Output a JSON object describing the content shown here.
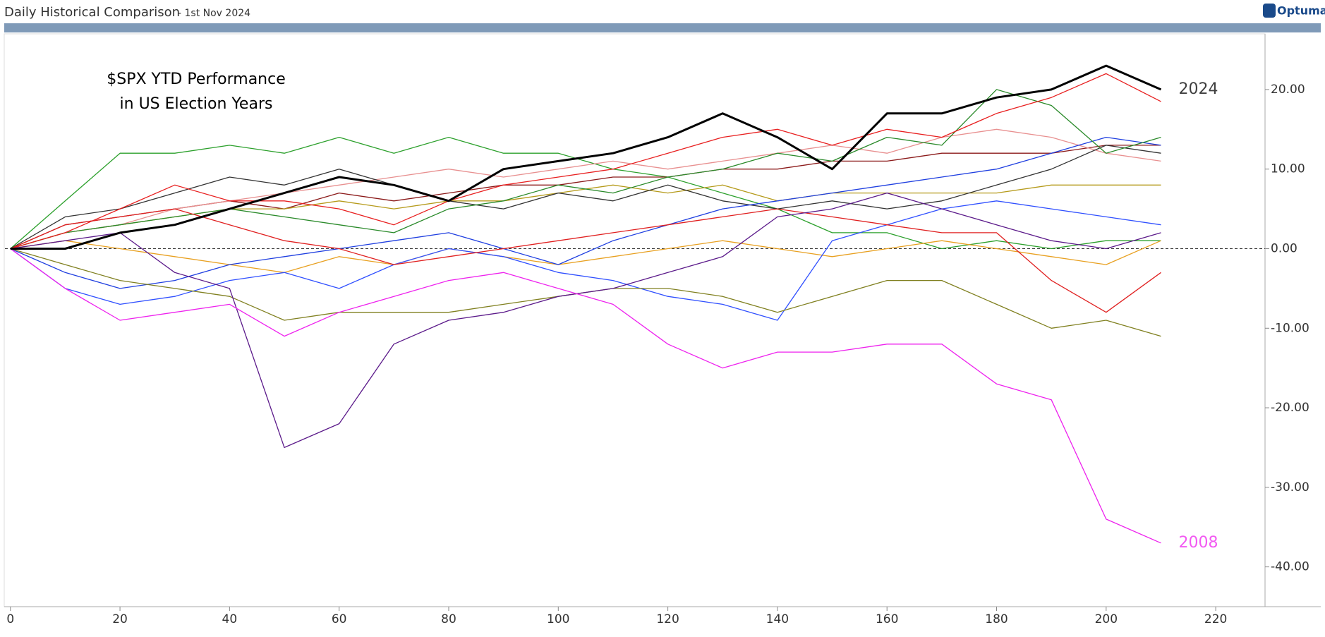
{
  "header": {
    "title": "Daily Historical Comparison",
    "subtitle": "- 1st Nov 2024",
    "logo": "Optuma"
  },
  "chart_data": {
    "type": "line",
    "annotation": [
      "$SPX YTD Performance",
      "in US Election Years"
    ],
    "x": [
      0,
      10,
      20,
      30,
      40,
      50,
      60,
      70,
      80,
      90,
      100,
      110,
      120,
      130,
      140,
      150,
      160,
      170,
      180,
      190,
      200,
      210
    ],
    "xlim": [
      -1,
      229
    ],
    "xticks": [
      0,
      20,
      40,
      60,
      80,
      100,
      120,
      140,
      160,
      180,
      200,
      220
    ],
    "ylim": [
      -45,
      27
    ],
    "yticks": [
      {
        "value": 20,
        "label": "20.00"
      },
      {
        "value": 10,
        "label": "10.00"
      },
      {
        "value": 0,
        "label": "0.00"
      },
      {
        "value": -10,
        "label": "-10.00"
      },
      {
        "value": -20,
        "label": "-20.00"
      },
      {
        "value": -30,
        "label": "-30.00"
      },
      {
        "value": -40,
        "label": "-40.00"
      }
    ],
    "hline": 0,
    "series": [
      {
        "color": "#2ca02c",
        "values": [
          0,
          6,
          12,
          12,
          13,
          12,
          14,
          12,
          14,
          12,
          12,
          10,
          9,
          7,
          5,
          2,
          2,
          0,
          1,
          0,
          1,
          1
        ]
      },
      {
        "color": "#e8a020",
        "values": [
          0,
          1,
          0,
          -1,
          -2,
          -3,
          -1,
          -2,
          0,
          -1,
          -2,
          -1,
          0,
          1,
          0,
          -1,
          0,
          1,
          0,
          -1,
          -2,
          1
        ]
      },
      {
        "color": "#8b1a1a",
        "values": [
          0,
          3,
          4,
          5,
          6,
          5,
          7,
          6,
          7,
          8,
          8,
          9,
          9,
          10,
          10,
          11,
          11,
          12,
          12,
          12,
          13,
          13
        ]
      },
      {
        "color": "#b59a1a",
        "values": [
          0,
          2,
          3,
          4,
          5,
          5,
          6,
          5,
          6,
          6,
          7,
          8,
          7,
          8,
          6,
          7,
          7,
          7,
          7,
          8,
          8,
          8
        ]
      },
      {
        "color": "#e89090",
        "values": [
          0,
          2,
          3,
          5,
          6,
          7,
          8,
          9,
          10,
          9,
          10,
          11,
          10,
          11,
          12,
          13,
          12,
          14,
          15,
          14,
          12,
          11
        ]
      },
      {
        "color": "#333333",
        "values": [
          0,
          4,
          5,
          7,
          9,
          8,
          10,
          8,
          6,
          5,
          7,
          6,
          8,
          6,
          5,
          6,
          5,
          6,
          8,
          10,
          13,
          12
        ]
      },
      {
        "color": "#1f3fe0",
        "values": [
          0,
          -3,
          -5,
          -4,
          -2,
          -1,
          0,
          1,
          2,
          0,
          -2,
          1,
          3,
          5,
          6,
          7,
          8,
          9,
          10,
          12,
          14,
          13
        ]
      },
      {
        "color": "#3050ff",
        "values": [
          0,
          -5,
          -7,
          -6,
          -4,
          -3,
          -5,
          -2,
          0,
          -1,
          -3,
          -4,
          -6,
          -7,
          -9,
          1,
          3,
          5,
          6,
          5,
          4,
          3
        ]
      },
      {
        "color": "#2a8a2a",
        "values": [
          0,
          2,
          3,
          4,
          5,
          4,
          3,
          2,
          5,
          6,
          8,
          7,
          9,
          10,
          12,
          11,
          14,
          13,
          20,
          18,
          12,
          14
        ]
      },
      {
        "color": "#e82020",
        "values": [
          0,
          2,
          5,
          8,
          6,
          6,
          5,
          3,
          6,
          8,
          9,
          10,
          12,
          14,
          15,
          13,
          15,
          14,
          17,
          19,
          22,
          18.5
        ]
      },
      {
        "color": "#e02020",
        "values": [
          0,
          3,
          4,
          5,
          3,
          1,
          0,
          -2,
          -1,
          0,
          1,
          2,
          3,
          4,
          5,
          4,
          3,
          2,
          2,
          -4,
          -8,
          -3
        ]
      },
      {
        "color": "#808020",
        "values": [
          0,
          -2,
          -4,
          -5,
          -6,
          -9,
          -8,
          -8,
          -8,
          -7,
          -6,
          -5,
          -5,
          -6,
          -8,
          -6,
          -4,
          -4,
          -7,
          -10,
          -9,
          -11
        ]
      },
      {
        "color": "#5b1a8a",
        "values": [
          0,
          1,
          2,
          -3,
          -5,
          -25,
          -22,
          -12,
          -9,
          -8,
          -6,
          -5,
          -3,
          -1,
          4,
          5,
          7,
          5,
          3,
          1,
          0,
          2
        ]
      },
      {
        "name": "2008",
        "color": "#ee22ee",
        "values": [
          0,
          -5,
          -9,
          -8,
          -7,
          -11,
          -8,
          -6,
          -4,
          -3,
          -5,
          -7,
          -12,
          -15,
          -13,
          -13,
          -12,
          -12,
          -17,
          -19,
          -34,
          -37
        ]
      },
      {
        "name": "2024",
        "color": "#000000",
        "width": 3,
        "values": [
          0,
          0,
          2,
          3,
          5,
          7,
          9,
          8,
          6,
          10,
          11,
          12,
          14,
          17,
          14,
          10,
          17,
          17,
          19,
          20,
          23,
          20
        ]
      }
    ]
  }
}
